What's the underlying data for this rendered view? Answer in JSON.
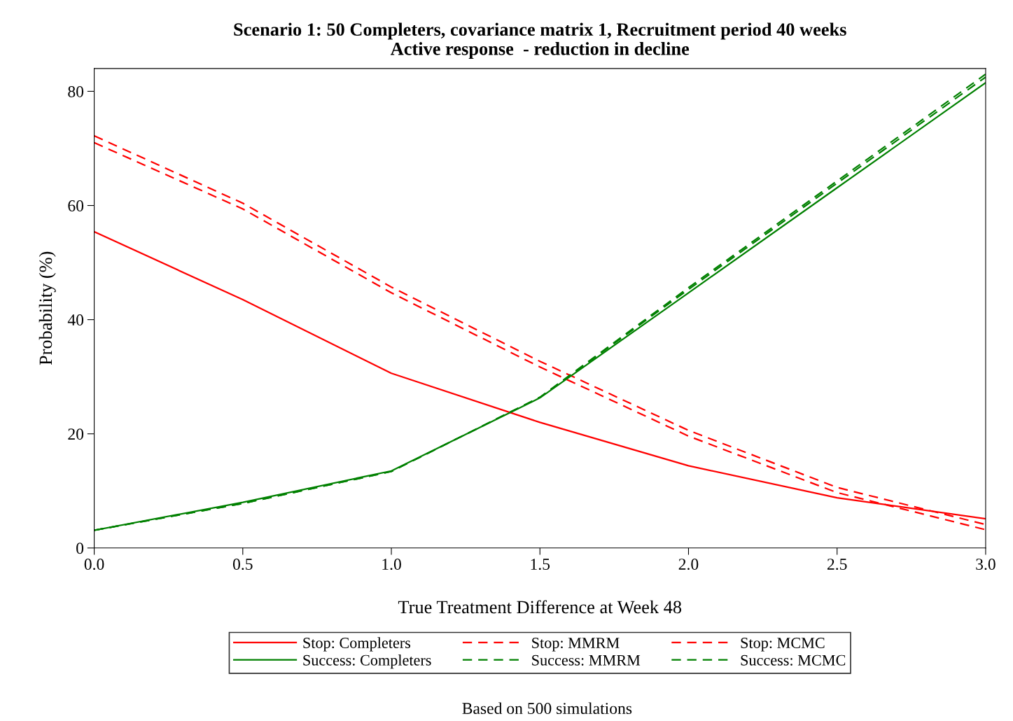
{
  "chart_data": {
    "type": "line",
    "title": "Scenario 1: 50 Completers, covariance matrix 1, Recruitment period 40 weeks\nActive response  - reduction in decline",
    "xlabel": "True Treatment Difference at Week 48",
    "ylabel": "Probability (%)",
    "x": [
      0,
      0.5,
      1.0,
      1.5,
      2.0,
      2.5,
      3.0
    ],
    "series": [
      {
        "name": "Stop: Completers",
        "color": "#ff0000",
        "line_style": "solid",
        "values": [
          55.4,
          43.5,
          30.6,
          22.0,
          14.4,
          8.8,
          5.1
        ]
      },
      {
        "name": "Stop: MMRM",
        "color": "#ff0000",
        "line_style": "dashed",
        "values": [
          72.2,
          60.4,
          45.7,
          32.7,
          20.6,
          10.6,
          4.1
        ]
      },
      {
        "name": "Stop: MCMC",
        "color": "#ff0000",
        "line_style": "dashed",
        "values": [
          71.0,
          59.4,
          44.7,
          31.7,
          19.6,
          9.7,
          3.2
        ]
      },
      {
        "name": "Success: Completers",
        "color": "#008000",
        "line_style": "solid",
        "values": [
          3.1,
          8.0,
          13.5,
          26.3,
          44.7,
          63.1,
          81.5
        ]
      },
      {
        "name": "Success: MMRM",
        "color": "#008000",
        "line_style": "dashed",
        "values": [
          3.1,
          7.8,
          13.4,
          26.4,
          45.6,
          64.3,
          83.0
        ]
      },
      {
        "name": "Success: MCMC",
        "color": "#008000",
        "line_style": "dashed",
        "values": [
          3.1,
          7.8,
          13.4,
          26.4,
          45.3,
          63.9,
          82.5
        ]
      }
    ],
    "xlim": [
      0,
      3.0
    ],
    "ylim": [
      0,
      84
    ],
    "xticks": [
      {
        "value": 0,
        "label": "0.0"
      },
      0.5,
      {
        "value": 1.0,
        "label": "1.0"
      },
      1.5,
      {
        "value": 2.0,
        "label": "2.0"
      },
      2.5,
      {
        "value": 3.0,
        "label": "3.0"
      }
    ],
    "yticks": [
      0,
      20,
      40,
      60,
      80
    ],
    "grid": false,
    "legend": "bottom",
    "marker": "none",
    "annotations": [
      "Based on 500 simulations"
    ]
  }
}
